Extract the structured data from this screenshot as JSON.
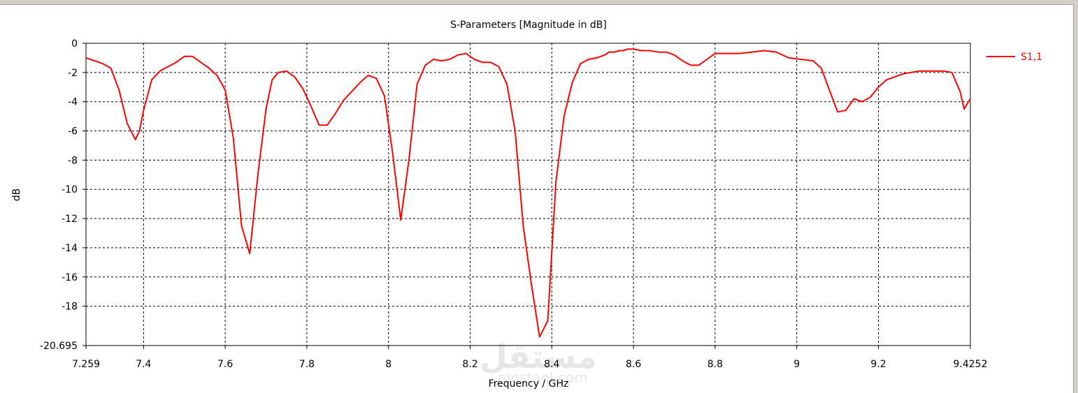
{
  "chart_data": {
    "type": "line",
    "title": "S-Parameters [Magnitude in dB]",
    "xlabel": "Frequency / GHz",
    "ylabel": "dB",
    "xlim": [
      7.259,
      9.4252
    ],
    "ylim": [
      -20.695,
      0
    ],
    "x_ticks": [
      "7.259",
      "7.4",
      "7.6",
      "7.8",
      "8",
      "8.2",
      "8.4",
      "8.6",
      "8.8",
      "9",
      "9.2",
      "9.4252"
    ],
    "x_tick_values": [
      7.259,
      7.4,
      7.6,
      7.8,
      8.0,
      8.2,
      8.4,
      8.6,
      8.8,
      9.0,
      9.2,
      9.4252
    ],
    "y_ticks": [
      "0",
      "-2",
      "-4",
      "-6",
      "-8",
      "-10",
      "-12",
      "-14",
      "-16",
      "-18",
      "-20.695"
    ],
    "y_tick_values": [
      0,
      -2,
      -4,
      -6,
      -8,
      -10,
      -12,
      -14,
      -16,
      -18,
      -20.695
    ],
    "grid": true,
    "legend_position": "right",
    "series": [
      {
        "name": "S1,1",
        "color": "#ff0000",
        "x": [
          7.259,
          7.28,
          7.3,
          7.32,
          7.34,
          7.36,
          7.38,
          7.39,
          7.4,
          7.42,
          7.44,
          7.46,
          7.48,
          7.5,
          7.52,
          7.54,
          7.56,
          7.58,
          7.6,
          7.62,
          7.64,
          7.66,
          7.68,
          7.7,
          7.715,
          7.73,
          7.75,
          7.77,
          7.79,
          7.81,
          7.83,
          7.85,
          7.87,
          7.89,
          7.91,
          7.93,
          7.95,
          7.97,
          7.99,
          8.01,
          8.03,
          8.05,
          8.07,
          8.09,
          8.11,
          8.13,
          8.15,
          8.17,
          8.19,
          8.21,
          8.23,
          8.25,
          8.27,
          8.29,
          8.31,
          8.33,
          8.35,
          8.37,
          8.39,
          8.41,
          8.43,
          8.45,
          8.47,
          8.49,
          8.51,
          8.53,
          8.54,
          8.555,
          8.565,
          8.575,
          8.585,
          8.6,
          8.62,
          8.64,
          8.66,
          8.68,
          8.7,
          8.72,
          8.74,
          8.76,
          8.78,
          8.8,
          8.83,
          8.86,
          8.89,
          8.92,
          8.95,
          8.98,
          9.01,
          9.04,
          9.06,
          9.08,
          9.1,
          9.12,
          9.14,
          9.16,
          9.18,
          9.2,
          9.22,
          9.24,
          9.26,
          9.28,
          9.3,
          9.32,
          9.34,
          9.36,
          9.38,
          9.4,
          9.41,
          9.4252
        ],
        "values": [
          -1.0,
          -1.2,
          -1.4,
          -1.7,
          -3.2,
          -5.5,
          -6.6,
          -6.0,
          -4.6,
          -2.5,
          -1.9,
          -1.6,
          -1.3,
          -0.9,
          -0.9,
          -1.3,
          -1.7,
          -2.2,
          -3.2,
          -6.5,
          -12.5,
          -14.4,
          -9.0,
          -4.5,
          -2.5,
          -2.0,
          -1.9,
          -2.3,
          -3.1,
          -4.3,
          -5.6,
          -5.6,
          -4.8,
          -3.9,
          -3.3,
          -2.7,
          -2.2,
          -2.4,
          -3.6,
          -7.5,
          -12.1,
          -8.0,
          -2.8,
          -1.5,
          -1.1,
          -1.2,
          -1.1,
          -0.8,
          -0.7,
          -1.1,
          -1.3,
          -1.3,
          -1.6,
          -2.8,
          -6.0,
          -12.5,
          -16.5,
          -20.1,
          -19.0,
          -9.5,
          -5.0,
          -2.7,
          -1.4,
          -1.1,
          -1.0,
          -0.8,
          -0.6,
          -0.6,
          -0.5,
          -0.5,
          -0.4,
          -0.4,
          -0.5,
          -0.5,
          -0.6,
          -0.6,
          -0.8,
          -1.2,
          -1.5,
          -1.5,
          -1.1,
          -0.7,
          -0.7,
          -0.7,
          -0.6,
          -0.5,
          -0.6,
          -1.0,
          -1.1,
          -1.2,
          -1.7,
          -3.2,
          -4.7,
          -4.6,
          -3.8,
          -4.0,
          -3.7,
          -3.0,
          -2.5,
          -2.3,
          -2.1,
          -2.0,
          -1.9,
          -1.9,
          -1.9,
          -1.9,
          -2.0,
          -3.3,
          -4.5,
          -3.8
        ]
      }
    ]
  },
  "watermark": {
    "arabic": "مستقل",
    "latin": "mostaql.com"
  }
}
